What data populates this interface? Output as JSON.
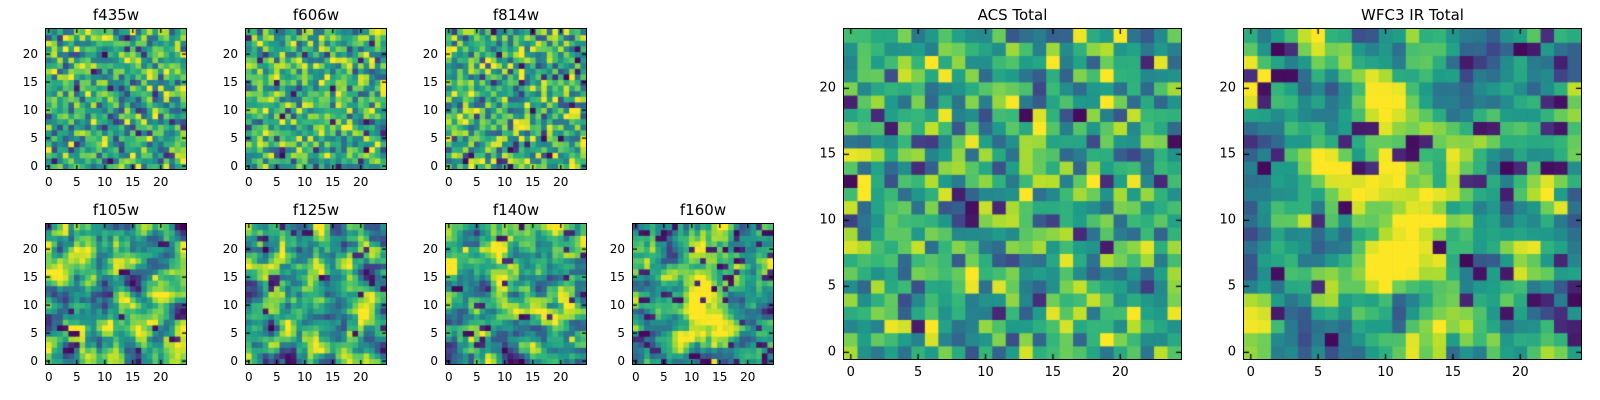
{
  "chart_data": {
    "type": "heatmap",
    "colormap": "viridis",
    "colormap_stops": [
      "#440154",
      "#482878",
      "#3e4989",
      "#31688e",
      "#26828e",
      "#1f9e89",
      "#35b779",
      "#6ece58",
      "#b5de2b",
      "#fde725"
    ],
    "value_range": [
      0,
      1
    ],
    "background": "#ffffff",
    "axis_color": "#000000",
    "grid": false,
    "note": "Per-pixel values are unreadable noise; grids are procedurally reconstructed from the pattern parameters below.",
    "panels": [
      {
        "id": "f435w",
        "title": "f435w",
        "size": "small",
        "n": 25,
        "x_ticks": [
          0,
          5,
          10,
          15,
          20
        ],
        "y_ticks": [
          0,
          5,
          10,
          15,
          20
        ],
        "pattern": {
          "kind": "pixel-noise",
          "seed": 11,
          "base": 0.62,
          "spread": 0.5,
          "smooth": 0,
          "stretch": 1,
          "dark_outlier_prob": 0.03,
          "bright_outlier_prob": 0.015,
          "edge_dark": false
        }
      },
      {
        "id": "f606w",
        "title": "f606w",
        "size": "small",
        "n": 25,
        "x_ticks": [
          0,
          5,
          10,
          15,
          20
        ],
        "y_ticks": [
          0,
          5,
          10,
          15,
          20
        ],
        "pattern": {
          "kind": "pixel-noise",
          "seed": 22,
          "base": 0.63,
          "spread": 0.48,
          "smooth": 0,
          "stretch": 1,
          "dark_outlier_prob": 0.03,
          "bright_outlier_prob": 0.015,
          "edge_dark": false
        }
      },
      {
        "id": "f814w",
        "title": "f814w",
        "size": "small",
        "n": 25,
        "x_ticks": [
          0,
          5,
          10,
          15,
          20
        ],
        "y_ticks": [
          0,
          5,
          10,
          15,
          20
        ],
        "pattern": {
          "kind": "pixel-noise",
          "seed": 33,
          "base": 0.62,
          "spread": 0.5,
          "smooth": 0,
          "stretch": 1,
          "dark_outlier_prob": 0.035,
          "bright_outlier_prob": 0.015,
          "edge_dark": false
        }
      },
      {
        "id": "f105w",
        "title": "f105w",
        "size": "small",
        "n": 25,
        "x_ticks": [
          0,
          5,
          10,
          15,
          20
        ],
        "y_ticks": [
          0,
          5,
          10,
          15,
          20
        ],
        "pattern": {
          "kind": "smooth-noise",
          "seed": 44,
          "base": 0.63,
          "spread": 0.6,
          "smooth": 1,
          "stretch": 2.6,
          "dark_outlier_prob": 0.025,
          "bright_outlier_prob": 0.004,
          "edge_dark": false
        }
      },
      {
        "id": "f125w",
        "title": "f125w",
        "size": "small",
        "n": 25,
        "x_ticks": [
          0,
          5,
          10,
          15,
          20
        ],
        "y_ticks": [
          0,
          5,
          10,
          15,
          20
        ],
        "pattern": {
          "kind": "smooth-noise",
          "seed": 55,
          "base": 0.62,
          "spread": 0.6,
          "smooth": 1,
          "stretch": 2.6,
          "dark_outlier_prob": 0.025,
          "bright_outlier_prob": 0.004,
          "edge_dark": false
        }
      },
      {
        "id": "f140w",
        "title": "f140w",
        "size": "small",
        "n": 25,
        "x_ticks": [
          0,
          5,
          10,
          15,
          20
        ],
        "y_ticks": [
          0,
          5,
          10,
          15,
          20
        ],
        "pattern": {
          "kind": "smooth-noise",
          "seed": 66,
          "base": 0.64,
          "spread": 0.58,
          "smooth": 1,
          "stretch": 2.6,
          "dark_outlier_prob": 0.025,
          "bright_outlier_prob": 0.004,
          "edge_dark": false
        }
      },
      {
        "id": "f160w",
        "title": "f160w",
        "size": "small",
        "n": 25,
        "x_ticks": [
          0,
          5,
          10,
          15,
          20
        ],
        "y_ticks": [
          0,
          5,
          10,
          15,
          20
        ],
        "pattern": {
          "kind": "smooth-noise",
          "seed": 77,
          "base": 0.55,
          "spread": 0.55,
          "smooth": 1,
          "stretch": 2.4,
          "dark_outlier_prob": 0.04,
          "bright_outlier_prob": 0.003,
          "edge_dark": true,
          "source": {
            "x": 12,
            "y": 11,
            "sx": 2.8,
            "sy": 5.5,
            "amp": 0.5
          }
        }
      },
      {
        "id": "acs-total",
        "title": "ACS Total",
        "size": "large",
        "n": 25,
        "x_ticks": [
          0,
          5,
          10,
          15,
          20
        ],
        "y_ticks": [
          0,
          5,
          10,
          15,
          20
        ],
        "pattern": {
          "kind": "pixel-noise",
          "seed": 88,
          "base": 0.62,
          "spread": 0.48,
          "smooth": 0,
          "stretch": 1,
          "dark_outlier_prob": 0.03,
          "bright_outlier_prob": 0.015,
          "edge_dark": false
        }
      },
      {
        "id": "wfc3-ir-total",
        "title": "WFC3 IR Total",
        "size": "large",
        "n": 25,
        "x_ticks": [
          0,
          5,
          10,
          15,
          20
        ],
        "y_ticks": [
          0,
          5,
          10,
          15,
          20
        ],
        "pattern": {
          "kind": "smooth-noise",
          "seed": 99,
          "base": 0.55,
          "spread": 0.55,
          "smooth": 1,
          "stretch": 2.5,
          "dark_outlier_prob": 0.035,
          "bright_outlier_prob": 0.003,
          "edge_dark": true,
          "source": {
            "x": 11,
            "y": 12,
            "sx": 3.5,
            "sy": 6,
            "amp": 0.45
          }
        }
      }
    ]
  }
}
